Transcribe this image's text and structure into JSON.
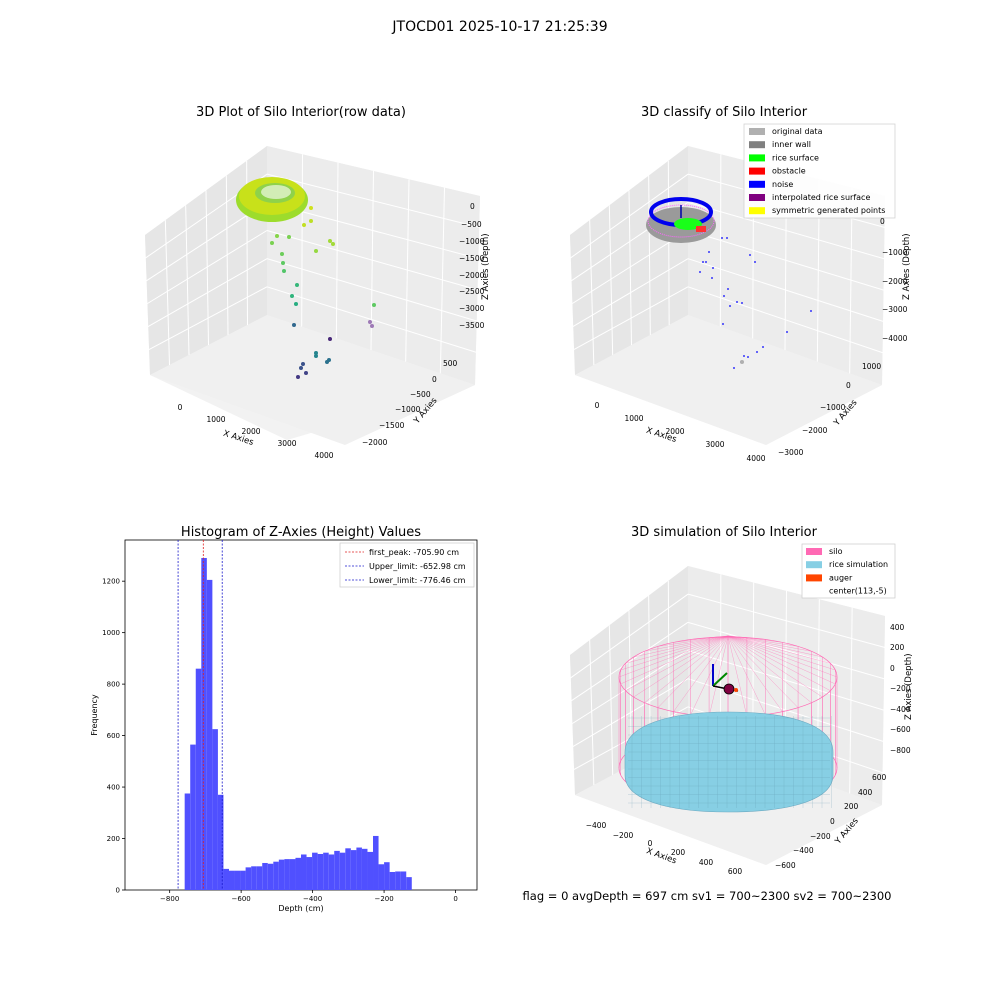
{
  "figure": {
    "suptitle": "JTOCD01 2025-10-17 21:25:39",
    "status_line": "flag = 0     avgDepth = 697 cm  sv1 = 700~2300  sv2 = 700~2300"
  },
  "colors": {
    "histogram_bar": "#5050ff",
    "peak_line": "#e02020",
    "limit_line": "#1a1acc",
    "silo_wire": "#ff69b4",
    "rice_fill": "#87cfe4",
    "auger": "#ff4500"
  },
  "chart_data": [
    {
      "type": "scatter",
      "subtype": "3d",
      "title": "3D Plot of Silo Interior(row data)",
      "xlabel": "X Axies",
      "ylabel": "Y Axies",
      "zlabel": "Z Axies (Depth)",
      "x_ticks": [
        "0",
        "1000",
        "2000",
        "3000",
        "4000"
      ],
      "y_ticks": [
        "500",
        "0",
        "−500",
        "−1000",
        "−1500",
        "−2000"
      ],
      "z_ticks": [
        "0",
        "−500",
        "−1000",
        "−1500",
        "−2000",
        "−2500",
        "−3000",
        "−3500"
      ],
      "colormap": "viridis"
    },
    {
      "type": "scatter",
      "subtype": "3d",
      "title": "3D classify of Silo Interior",
      "xlabel": "X Axies",
      "ylabel": "Y Axies",
      "zlabel": "Z Axies (Depth)",
      "x_ticks": [
        "0",
        "1000",
        "2000",
        "3000",
        "4000"
      ],
      "y_ticks": [
        "1000",
        "0",
        "−1000",
        "−2000",
        "−3000"
      ],
      "z_ticks": [
        "0",
        "−1000",
        "−2000",
        "−3000",
        "−4000"
      ],
      "legend": [
        {
          "label": "original data",
          "color": "#b0b0b0"
        },
        {
          "label": "inner wall",
          "color": "#808080"
        },
        {
          "label": "rice surface",
          "color": "#00ff00"
        },
        {
          "label": "obstacle",
          "color": "#ff0000"
        },
        {
          "label": "noise",
          "color": "#0000ff"
        },
        {
          "label": "interpolated rice surface",
          "color": "#800080"
        },
        {
          "label": "symmetric generated points",
          "color": "#ffff00"
        }
      ],
      "legend_position": "top-right"
    },
    {
      "type": "bar",
      "subtype": "histogram",
      "title": "Histogram of Z-Axies (Height) Values",
      "xlabel": "Depth (cm)",
      "ylabel": "Frequency",
      "xlim": [
        -925,
        60
      ],
      "ylim": [
        0,
        1360
      ],
      "x_ticks": [
        -800,
        -600,
        -400,
        -200,
        0
      ],
      "y_ticks": [
        0,
        200,
        400,
        600,
        800,
        1000,
        1200
      ],
      "bin_width": 15.5,
      "bin_start": -758,
      "values": [
        375,
        565,
        860,
        1290,
        1205,
        625,
        370,
        82,
        75,
        75,
        75,
        88,
        92,
        92,
        105,
        102,
        110,
        118,
        120,
        120,
        125,
        138,
        128,
        145,
        140,
        145,
        138,
        152,
        145,
        162,
        155,
        165,
        160,
        148,
        210,
        100,
        108,
        70,
        72,
        72,
        50
      ],
      "vlines": [
        {
          "x": -705.9,
          "label": "first_peak: -705.90 cm",
          "kind": "peak"
        },
        {
          "x": -652.98,
          "label": "Upper_limit: -652.98 cm",
          "kind": "limit"
        },
        {
          "x": -776.46,
          "label": "Lower_limit: -776.46 cm",
          "kind": "limit"
        }
      ],
      "legend_position": "top-right"
    },
    {
      "type": "surface",
      "subtype": "3d",
      "title": "3D simulation of Silo Interior",
      "xlabel": "X Axies",
      "ylabel": "Y Axies",
      "zlabel": "Z Axies (Depth)",
      "x_ticks": [
        "−400",
        "−200",
        "0",
        "200",
        "400",
        "600"
      ],
      "y_ticks": [
        "600",
        "400",
        "200",
        "0",
        "−200",
        "−400",
        "−600"
      ],
      "z_ticks": [
        "400",
        "200",
        "0",
        "−200",
        "−400",
        "−600",
        "−800"
      ],
      "legend": [
        {
          "label": "silo",
          "color": "#ff69b4"
        },
        {
          "label": "rice simulation",
          "color": "#87cfe4"
        },
        {
          "label": "auger",
          "color": "#ff4500"
        },
        {
          "label": "center(113,-5)",
          "color": ""
        }
      ],
      "legend_position": "top-right"
    }
  ]
}
